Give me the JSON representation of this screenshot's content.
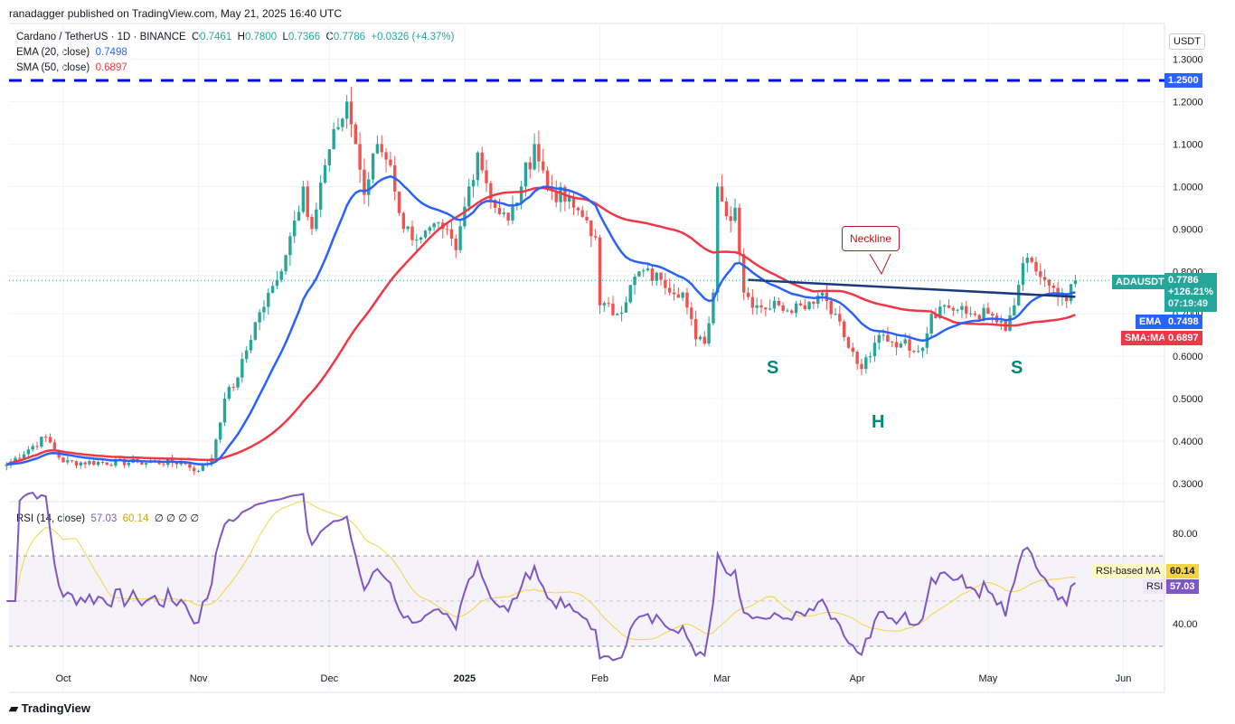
{
  "header": "ranadagger published on TradingView.com, May 21, 2025 16:40 UTC",
  "legend": {
    "symbol": "Cardano / TetherUS · 1D · BINANCE",
    "o": "0.7461",
    "h": "0.7800",
    "l": "0.7366",
    "c": "0.7786",
    "chg": "+0.0326 (+4.37%)",
    "ema_label": "EMA (20, close)",
    "ema_val": "0.7498",
    "sma_label": "SMA (50, close)",
    "sma_val": "0.6897",
    "rsi_label": "RSI (14, close)",
    "rsi_val": "57.03",
    "rsi_ma_val": "60.14",
    "rsi_extra": "∅ ∅ ∅ ∅"
  },
  "tags": {
    "sym": "ADAUSDT",
    "price": "0.7786",
    "pct": "+126.21%",
    "countdown": "07:19:49",
    "ema": "EMA",
    "ema_val": "0.7498",
    "sma": "SMA:MA",
    "sma_val": "0.6897",
    "rsi_ma": "RSI-based MA",
    "rsi_ma_val": "60.14",
    "rsi": "RSI",
    "rsi_val": "57.03",
    "resistance": "1.2500"
  },
  "annotations": {
    "neckline": "Neckline",
    "s1": "S",
    "h": "H",
    "s2": "S"
  },
  "logo": "TradingView",
  "colors": {
    "up": "#26a69a",
    "down": "#ef5350",
    "ema": "#2962ff",
    "sma": "#f23645",
    "rsi": "#7e57c2",
    "rsi_ma": "#f5d442"
  },
  "chart_data": {
    "type": "candlestick",
    "title": "Cardano / TetherUS · 1D · BINANCE",
    "currency": "USDT",
    "ylim": [
      0.27,
      1.33
    ],
    "y_ticks": [
      "1.3000",
      "1.2000",
      "1.1000",
      "1.0000",
      "0.9000",
      "0.8000",
      "0.7000",
      "0.6000",
      "0.5000",
      "0.4000",
      "0.3000"
    ],
    "x_ticks": [
      "Oct",
      "Nov",
      "Dec",
      "2025",
      "Feb",
      "Mar",
      "Apr",
      "May",
      "Jun"
    ],
    "start_date": "2024-09-18",
    "end_date": "2025-05-21",
    "close_waypoints_day_price": [
      [
        0,
        0.345
      ],
      [
        9,
        0.41
      ],
      [
        13,
        0.35
      ],
      [
        30,
        0.35
      ],
      [
        40,
        0.35
      ],
      [
        44,
        0.33
      ],
      [
        47,
        0.36
      ],
      [
        50,
        0.5
      ],
      [
        53,
        0.55
      ],
      [
        57,
        0.68
      ],
      [
        62,
        0.78
      ],
      [
        66,
        0.92
      ],
      [
        68,
        1.0
      ],
      [
        70,
        0.9
      ],
      [
        73,
        1.05
      ],
      [
        76,
        1.14
      ],
      [
        78,
        1.2
      ],
      [
        80,
        1.1
      ],
      [
        82,
        0.98
      ],
      [
        85,
        1.1
      ],
      [
        88,
        1.05
      ],
      [
        91,
        0.9
      ],
      [
        95,
        0.88
      ],
      [
        100,
        0.9
      ],
      [
        103,
        0.85
      ],
      [
        106,
        1.0
      ],
      [
        108,
        1.08
      ],
      [
        112,
        0.95
      ],
      [
        115,
        0.92
      ],
      [
        118,
        1.0
      ],
      [
        121,
        1.1
      ],
      [
        124,
        1.0
      ],
      [
        130,
        0.95
      ],
      [
        133,
        0.92
      ],
      [
        135,
        0.88
      ],
      [
        136,
        0.72
      ],
      [
        140,
        0.7
      ],
      [
        145,
        0.8
      ],
      [
        150,
        0.78
      ],
      [
        155,
        0.75
      ],
      [
        158,
        0.64
      ],
      [
        160,
        0.63
      ],
      [
        162,
        0.75
      ],
      [
        163,
        1.0
      ],
      [
        165,
        0.93
      ],
      [
        167,
        0.95
      ],
      [
        169,
        0.75
      ],
      [
        172,
        0.72
      ],
      [
        177,
        0.72
      ],
      [
        182,
        0.72
      ],
      [
        187,
        0.75
      ],
      [
        190,
        0.7
      ],
      [
        193,
        0.62
      ],
      [
        196,
        0.57
      ],
      [
        198,
        0.6
      ],
      [
        200,
        0.65
      ],
      [
        205,
        0.63
      ],
      [
        210,
        0.62
      ],
      [
        212,
        0.7
      ],
      [
        215,
        0.72
      ],
      [
        220,
        0.7
      ],
      [
        225,
        0.7
      ],
      [
        229,
        0.66
      ],
      [
        231,
        0.72
      ],
      [
        233,
        0.82
      ],
      [
        236,
        0.8
      ],
      [
        238,
        0.78
      ],
      [
        241,
        0.74
      ],
      [
        243,
        0.73
      ],
      [
        245,
        0.7786
      ]
    ],
    "resistance": 1.25,
    "neckline": [
      [
        170,
        0.78
      ],
      [
        245,
        0.74
      ]
    ],
    "rsi": {
      "ylim": [
        20,
        100
      ],
      "levels": [
        70,
        50,
        30
      ],
      "ticks": [
        "80.00",
        "40.00"
      ]
    }
  }
}
